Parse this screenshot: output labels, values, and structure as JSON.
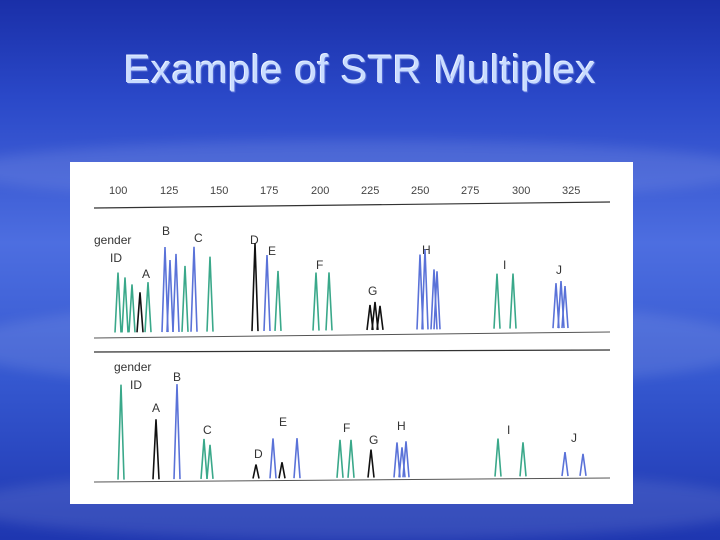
{
  "slide": {
    "title": "Example of STR Multiplex"
  },
  "figure": {
    "ruler_ticks": [
      "100",
      "125",
      "150",
      "175",
      "200",
      "225",
      "250",
      "275",
      "300",
      "325"
    ],
    "panel_top": {
      "gender_label": "gender",
      "id_label": "ID",
      "loci": [
        "A",
        "B",
        "C",
        "D",
        "E",
        "F",
        "G",
        "H",
        "I",
        "J"
      ]
    },
    "panel_bottom": {
      "gender_label": "gender",
      "id_label": "ID",
      "loci": [
        "A",
        "B",
        "C",
        "D",
        "E",
        "F",
        "G",
        "H",
        "I",
        "J"
      ]
    },
    "colors": {
      "green": "#3aa88a",
      "blue": "#5a72d8",
      "black": "#111111"
    }
  }
}
